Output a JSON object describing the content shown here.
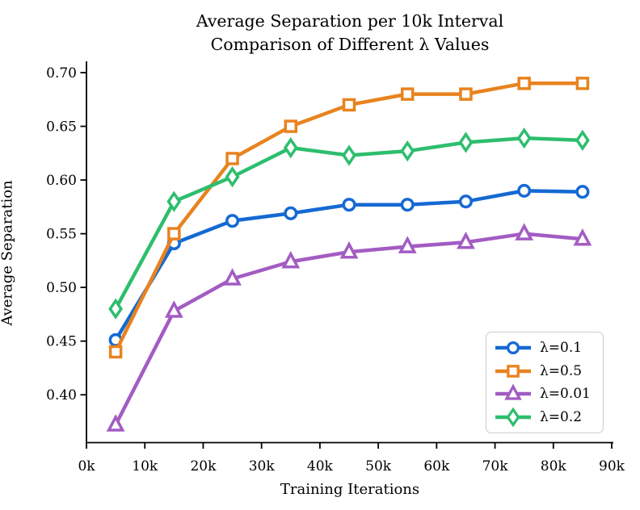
{
  "figure": {
    "title_line1": "Average Separation per 10k Interval",
    "title_line2": "Comparison of Different λ Values",
    "xlabel": "Training Iterations",
    "ylabel": "Average Separation"
  },
  "chart_data": {
    "type": "line",
    "title": "Average Separation per 10k Interval",
    "subtitle": "Comparison of Different λ Values",
    "xlabel": "Training Iterations",
    "ylabel": "Average Separation",
    "x": [
      5000,
      15000,
      25000,
      35000,
      45000,
      55000,
      65000,
      75000,
      85000
    ],
    "xticks": [
      0,
      10000,
      20000,
      30000,
      40000,
      50000,
      60000,
      70000,
      80000,
      90000
    ],
    "xtick_labels": [
      "0k",
      "10k",
      "20k",
      "30k",
      "40k",
      "50k",
      "60k",
      "70k",
      "80k",
      "90k"
    ],
    "yticks": [
      0.4,
      0.45,
      0.5,
      0.55,
      0.6,
      0.65,
      0.7
    ],
    "ytick_labels": [
      "0.40",
      "0.45",
      "0.50",
      "0.55",
      "0.60",
      "0.65",
      "0.70"
    ],
    "xlim": [
      0,
      90000
    ],
    "ylim": [
      0.355,
      0.711
    ],
    "grid": false,
    "legend_position": "lower right",
    "series": [
      {
        "name": "λ=0.1",
        "color": "#1569d3",
        "marker": "circle",
        "values": [
          0.451,
          0.541,
          0.562,
          0.569,
          0.577,
          0.577,
          0.58,
          0.59,
          0.589
        ]
      },
      {
        "name": "λ=0.5",
        "color": "#e8831f",
        "marker": "square",
        "values": [
          0.44,
          0.55,
          0.62,
          0.65,
          0.67,
          0.68,
          0.68,
          0.69,
          0.69
        ]
      },
      {
        "name": "λ=0.01",
        "color": "#a35cc3",
        "marker": "triangle",
        "values": [
          0.372,
          0.478,
          0.508,
          0.524,
          0.533,
          0.538,
          0.542,
          0.55,
          0.545
        ]
      },
      {
        "name": "λ=0.2",
        "color": "#2dbe6e",
        "marker": "diamond",
        "values": [
          0.48,
          0.58,
          0.603,
          0.63,
          0.623,
          0.627,
          0.635,
          0.639,
          0.637
        ]
      }
    ],
    "axis_color": "#000000",
    "legend_border_color": "#cccccc"
  }
}
